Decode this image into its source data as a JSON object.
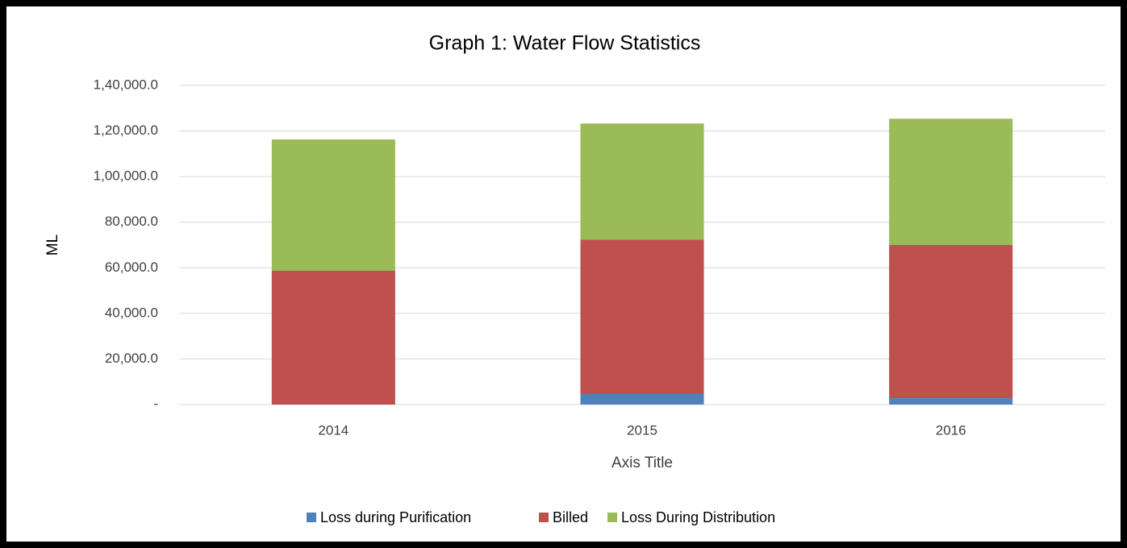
{
  "chart_data": {
    "type": "stacked-bar",
    "title": "Graph 1: Water Flow Statistics",
    "x_label": "Axis Title",
    "y_label": "ML",
    "categories": [
      "2014",
      "2015",
      "2016"
    ],
    "series": [
      {
        "name": "Loss during Purification",
        "color": "#4f81bd",
        "values": [
          0,
          4600,
          2800
        ]
      },
      {
        "name": "Billed",
        "color": "#c0504d",
        "values": [
          58700,
          67800,
          67200
        ]
      },
      {
        "name": "Loss During Distribution",
        "color": "#9bbb59",
        "values": [
          57600,
          50900,
          55400
        ]
      }
    ],
    "ylim": [
      0,
      140000
    ],
    "yticks": [
      {
        "value": 0,
        "label": "-"
      },
      {
        "value": 20000,
        "label": "20,000.0"
      },
      {
        "value": 40000,
        "label": "40,000.0"
      },
      {
        "value": 60000,
        "label": "60,000.0"
      },
      {
        "value": 80000,
        "label": "80,000.0"
      },
      {
        "value": 100000,
        "label": "1,00,000.0"
      },
      {
        "value": 120000,
        "label": "1,20,000.0"
      },
      {
        "value": 140000,
        "label": "1,40,000.0"
      }
    ],
    "grid": true,
    "legend": "bottom"
  }
}
